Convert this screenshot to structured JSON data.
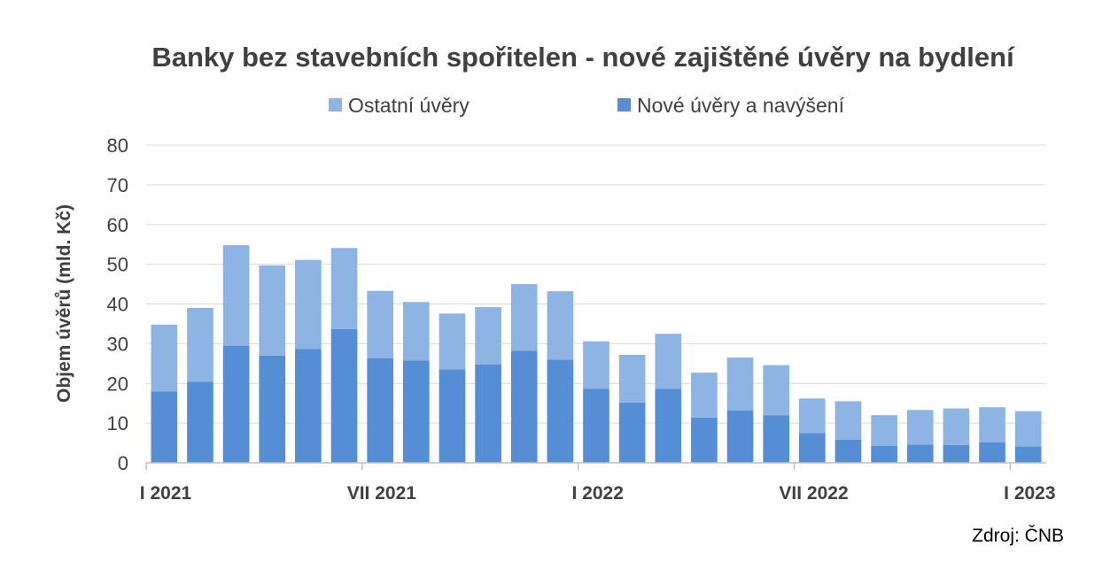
{
  "chart_data": {
    "type": "bar",
    "stacked": true,
    "title": "Banky bez stavebních spořitelen - nové zajištěné úvěry na bydlení",
    "xlabel": "",
    "ylabel": "Objem úvěrů (mld. Kč)",
    "ylim": [
      0,
      80
    ],
    "yticks": [
      0,
      10,
      20,
      30,
      40,
      50,
      60,
      70,
      80
    ],
    "grid": true,
    "legend_position": "top",
    "x_tick_labels": [
      {
        "index": 0,
        "label": "I 2021"
      },
      {
        "index": 6,
        "label": "VII 2021"
      },
      {
        "index": 12,
        "label": "I 2022"
      },
      {
        "index": 18,
        "label": "VII 2022"
      },
      {
        "index": 24,
        "label": "I 2023"
      }
    ],
    "series": [
      {
        "name": "Nové úvěry a navýšení",
        "color": "#558ED5",
        "values": [
          18.0,
          20.4,
          29.5,
          27.0,
          28.7,
          33.7,
          26.3,
          25.8,
          23.5,
          24.8,
          28.2,
          26.0,
          18.6,
          15.2,
          18.6,
          11.4,
          13.2,
          12.0,
          7.5,
          5.8,
          4.3,
          4.6,
          4.5,
          5.2,
          4.1
        ]
      },
      {
        "name": "Ostatní úvěry",
        "color": "#8DB4E2",
        "values": [
          16.8,
          18.6,
          25.3,
          22.7,
          22.4,
          20.4,
          17.0,
          14.7,
          14.1,
          14.4,
          16.8,
          17.2,
          12.0,
          12.0,
          13.9,
          11.3,
          13.3,
          12.6,
          8.7,
          9.7,
          7.7,
          8.7,
          9.2,
          8.8,
          8.9
        ]
      }
    ],
    "legend_order": [
      "Ostatní úvěry",
      "Nové úvěry a navýšení"
    ]
  },
  "source_text": "Zdroj: ČNB",
  "colors": {
    "text": "#404040",
    "grid": "#D9D9D9",
    "axis": "#BFBFBF"
  }
}
